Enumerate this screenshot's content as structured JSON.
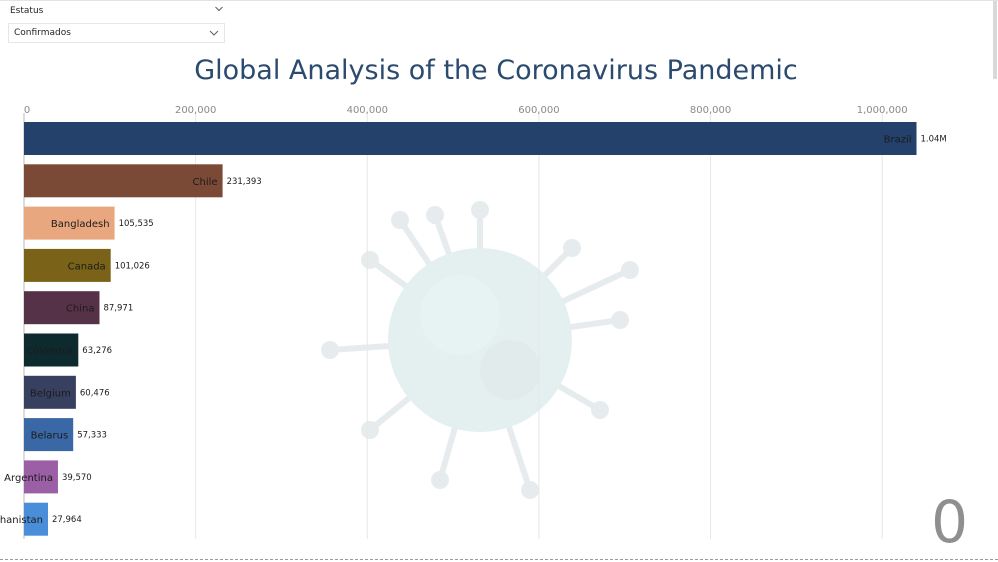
{
  "slicer": {
    "label": "Estatus",
    "selected_value": "Confirmados",
    "chevron_icon": "chevron-down-icon"
  },
  "title": "Global Analysis of the Coronavirus Pandemic",
  "counter": "0",
  "background_icon": "coronavirus-icon",
  "chart_data": {
    "type": "bar",
    "orientation": "horizontal",
    "x_ticks": [
      "0",
      "200,000",
      "400,000",
      "600,000",
      "800,000",
      "1,000,000"
    ],
    "xlim": [
      0,
      1100000
    ],
    "grid": true,
    "bars": [
      {
        "category": "Brazil",
        "value": 1040000,
        "label": "1.04M",
        "color": "#23416b"
      },
      {
        "category": "Chile",
        "value": 231393,
        "label": "231,393",
        "color": "#7a4a37"
      },
      {
        "category": "Bangladesh",
        "value": 105535,
        "label": "105,535",
        "color": "#e9a77f"
      },
      {
        "category": "Canada",
        "value": 101026,
        "label": "101,026",
        "color": "#7a6318"
      },
      {
        "category": "China",
        "value": 87971,
        "label": "87,971",
        "color": "#563248"
      },
      {
        "category": "Colombia",
        "value": 63276,
        "label": "63,276",
        "color": "#0d2a2e"
      },
      {
        "category": "Belgium",
        "value": 60476,
        "label": "60,476",
        "color": "#38405f"
      },
      {
        "category": "Belarus",
        "value": 57333,
        "label": "57,333",
        "color": "#3a67a5"
      },
      {
        "category": "Argentina",
        "value": 39570,
        "label": "39,570",
        "color": "#9b5fa6"
      },
      {
        "category": "Afghanistan",
        "value": 27964,
        "label": "27,964",
        "color": "#4a8ed9"
      }
    ]
  }
}
